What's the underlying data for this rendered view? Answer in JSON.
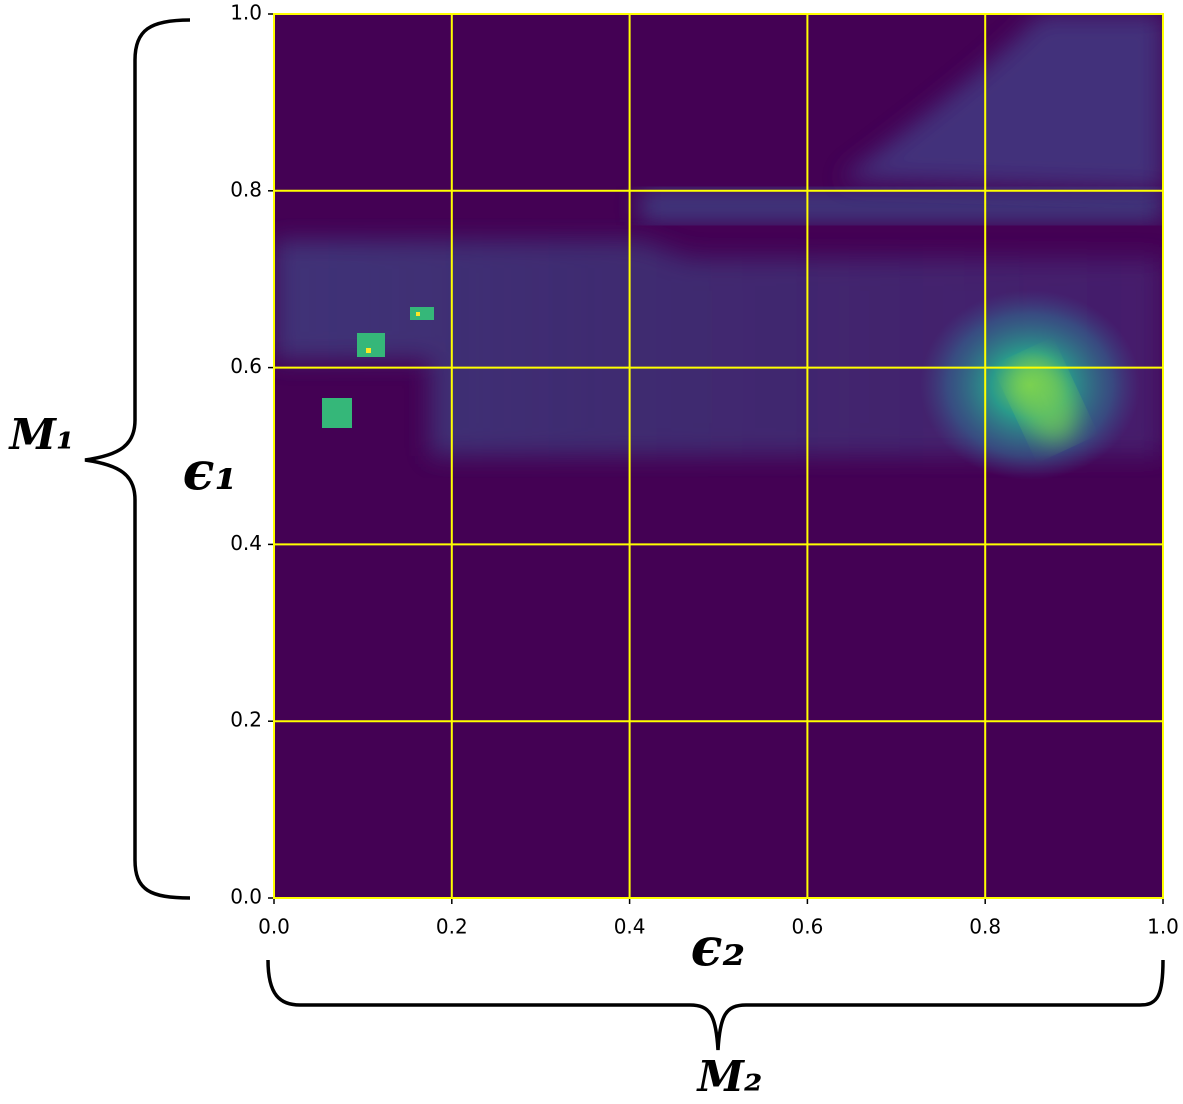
{
  "chart_data": {
    "type": "heatmap",
    "xlabel": "ϵ₂",
    "ylabel": "ϵ₁",
    "annotations": [
      "M₁",
      "M₂"
    ],
    "xlim": [
      0,
      1
    ],
    "ylim": [
      0,
      1
    ],
    "xticks": [
      {
        "value": 0,
        "label": "0.0"
      },
      0.2,
      0.4,
      0.6,
      0.8,
      {
        "value": 1,
        "label": "1.0"
      }
    ],
    "yticks": [
      {
        "value": 0,
        "label": "0.0"
      },
      0.2,
      0.4,
      0.6,
      0.8,
      {
        "value": 1,
        "label": "1.0"
      }
    ],
    "grid": true,
    "grid_color": "#ffff00",
    "background_color": "#440154"
  }
}
